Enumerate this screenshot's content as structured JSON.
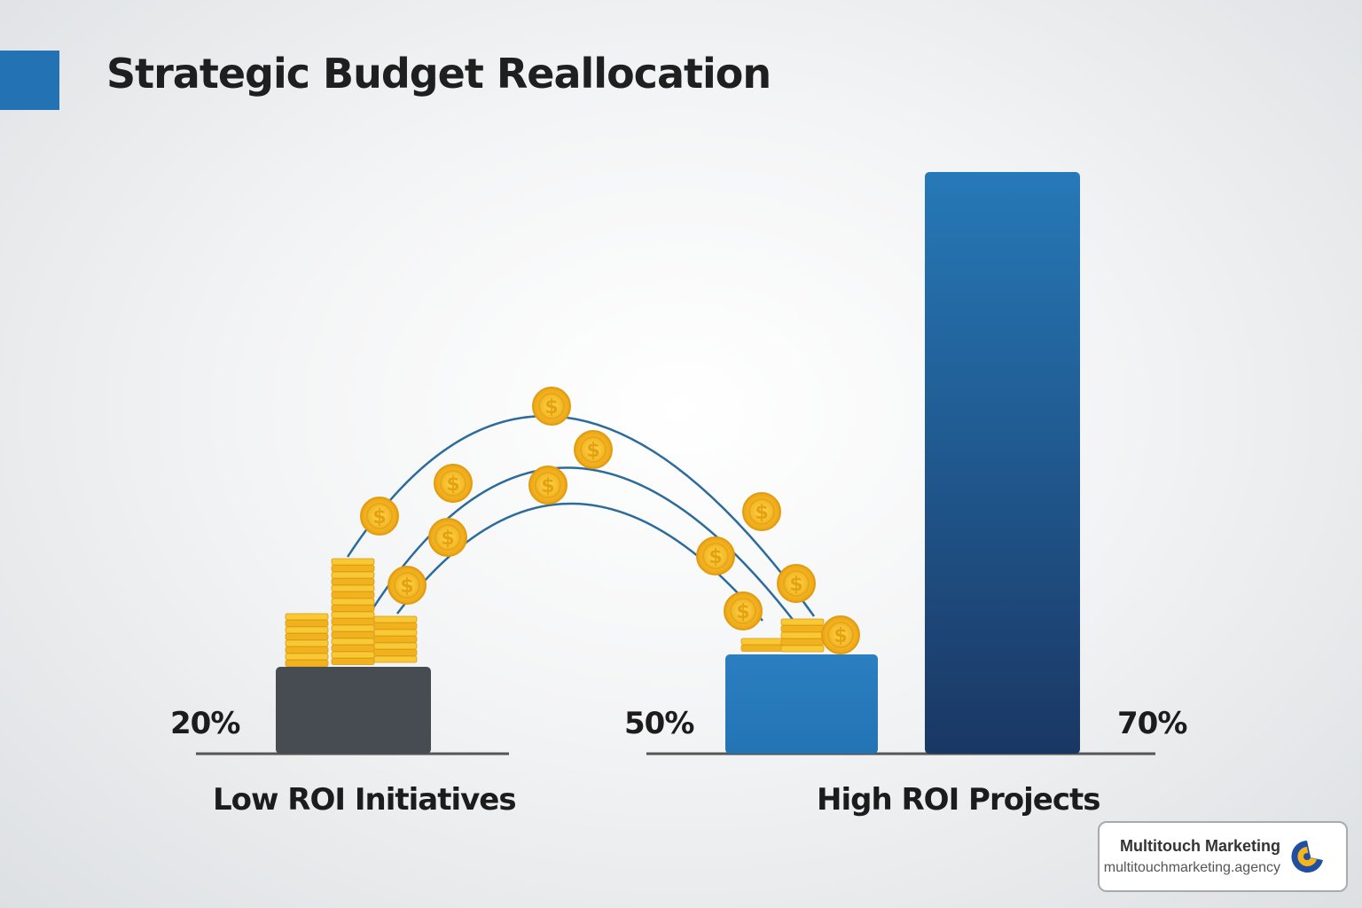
{
  "title": "Strategic Budget Reallocation",
  "chart_data": {
    "type": "bar",
    "title": "Strategic Budget Reallocation",
    "categories": [
      "Low ROI Initiatives",
      "High ROI Projects",
      "High ROI Projects"
    ],
    "groups": [
      {
        "label": "Low ROI Initiatives",
        "bars": [
          {
            "value_label": "20%",
            "value": 20,
            "color": "#464c51"
          }
        ]
      },
      {
        "label": "High ROI Projects",
        "bars": [
          {
            "value_label": "50%",
            "value": 50,
            "color": "#2a7fc0"
          },
          {
            "value_label": "70%",
            "value": 70,
            "color": "#1c3d6e"
          }
        ]
      }
    ],
    "values": [
      20,
      50,
      70
    ],
    "unit": "%",
    "annotation": "coins flowing from Low ROI Initiatives to High ROI Projects",
    "grid": false,
    "legend": "none"
  },
  "colors": {
    "accent": "#2372b4",
    "coin": "#f5b81c",
    "arc": "#2c6b9c"
  },
  "branding": {
    "name": "Multitouch Marketing",
    "url": "multitouchmarketing.agency",
    "icon": "multitouch-logo-icon"
  }
}
